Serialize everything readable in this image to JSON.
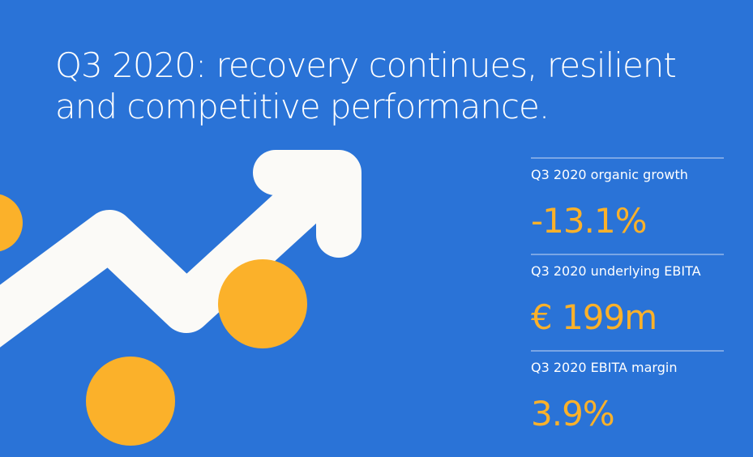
{
  "title_lines": [
    "Q3 2020: recovery continues, resilient",
    "and competitive performance."
  ],
  "metrics": [
    {
      "label": "Q3 2020 organic growth",
      "value": "-13.1%"
    },
    {
      "label": "Q3 2020 underlying EBITA",
      "value": "€ 199m"
    },
    {
      "label": "Q3 2020 EBITA margin",
      "value": "3.9%"
    }
  ]
}
